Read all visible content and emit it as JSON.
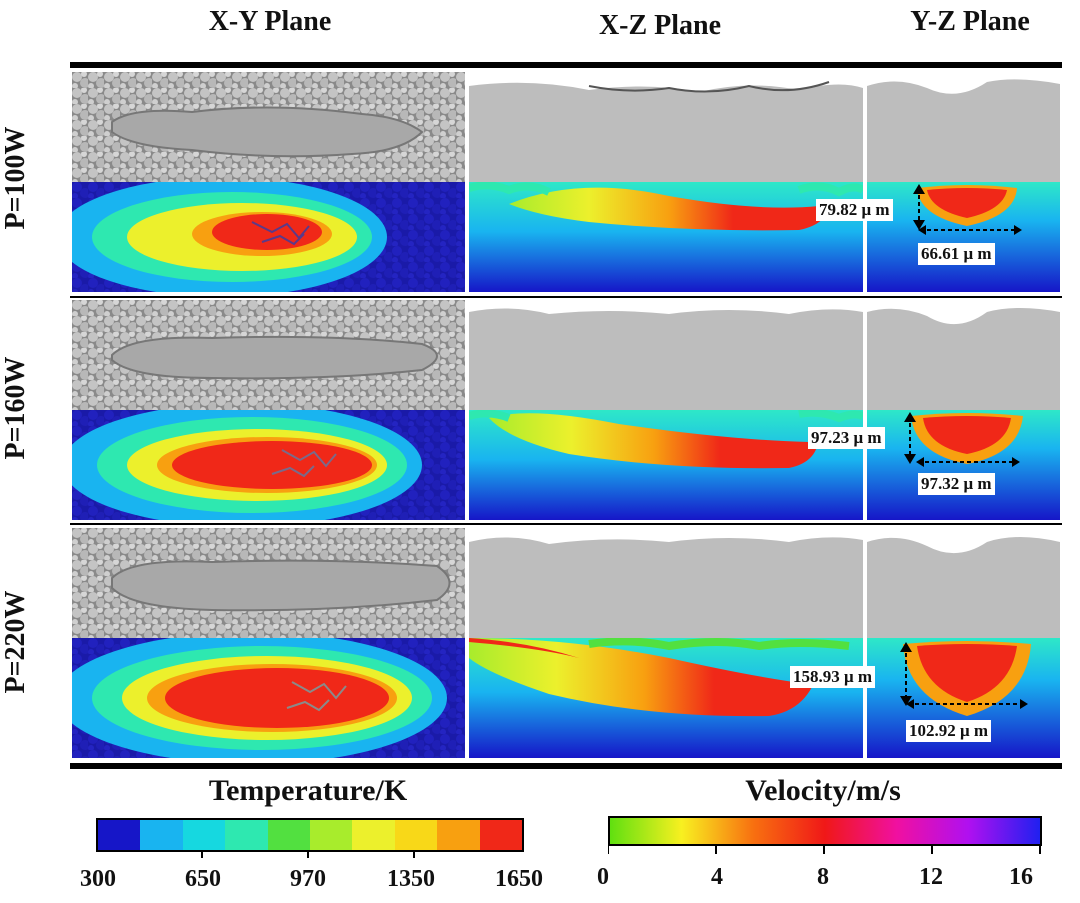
{
  "headers": {
    "xy": "X-Y Plane",
    "xz": "X-Z Plane",
    "yz": "Y-Z Plane"
  },
  "rows": [
    {
      "label": "P=100W",
      "depth": "79.82 μ m",
      "width": "66.61 μ m"
    },
    {
      "label": "P=160W",
      "depth": "97.23 μ m",
      "width": "97.32 μ m"
    },
    {
      "label": "P=220W",
      "depth": "158.93 μ m",
      "width": "102.92 μ m"
    }
  ],
  "temperature_bar": {
    "title": "Temperature/K",
    "ticks": [
      "300",
      "650",
      "970",
      "1350",
      "1650"
    ],
    "colors": [
      "#1616c8",
      "#19b4f0",
      "#16d8e0",
      "#2ee8b0",
      "#52e040",
      "#a8ec2c",
      "#ecf02c",
      "#f8d818",
      "#f8a010",
      "#f02818"
    ]
  },
  "velocity_bar": {
    "title": "Velocity/m/s",
    "ticks": [
      "0",
      "4",
      "8",
      "12",
      "16"
    ],
    "colors": [
      "#60e010",
      "#f8f020",
      "#f87010",
      "#f01818",
      "#f010a0",
      "#b010f0",
      "#2020f0"
    ]
  }
}
